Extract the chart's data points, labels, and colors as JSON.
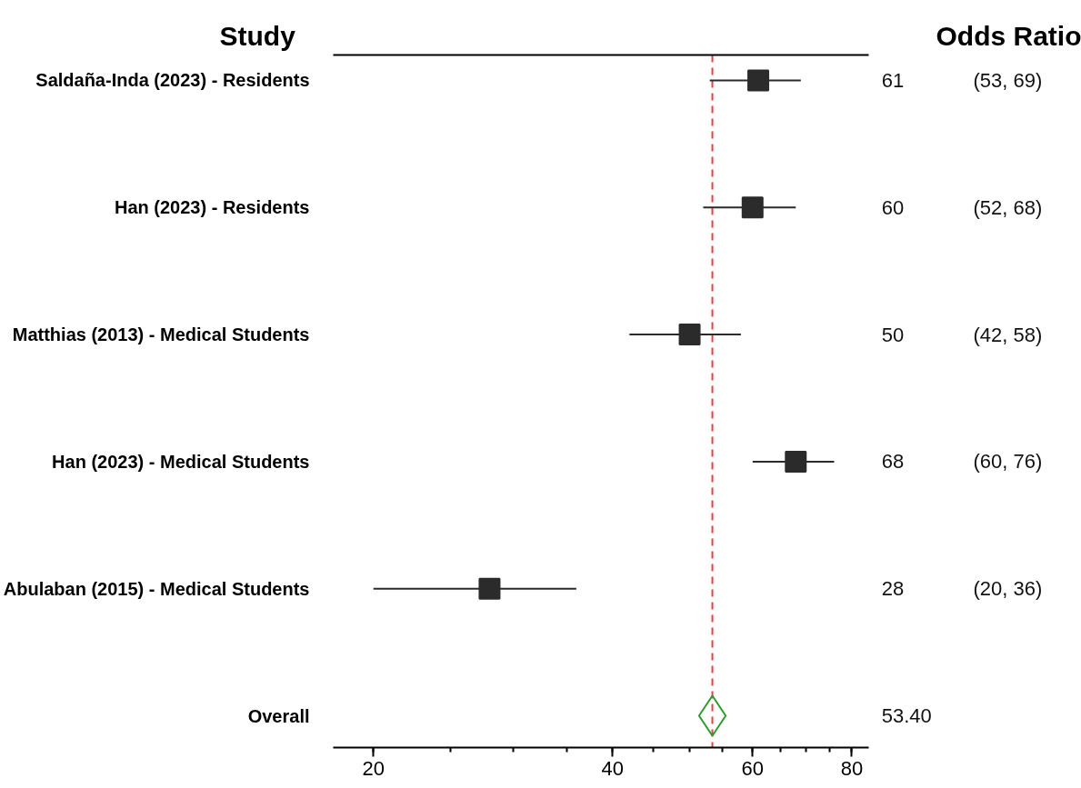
{
  "chart_data": {
    "type": "scatter",
    "orientation": "horizontal",
    "ylabel": "Study",
    "annotations": [
      "Odds Ratio",
      "(53, 69)",
      "(52, 68)",
      "(42, 58)",
      "(60, 76)",
      "(20, 36)",
      "53.40"
    ],
    "categories": [
      "Saldaña-Inda (2023) - Residents",
      "Han (2023) - Residents",
      "Matthias (2013) - Medical Students",
      "Han (2023) - Medical Students",
      "Abulaban (2015) - Medical Students",
      "Overall"
    ],
    "series": [
      {
        "color": "#2b2b2b",
        "marker": "square",
        "values": [
          61,
          60,
          50,
          68,
          28,
          null
        ],
        "errors": [
          [
            53,
            69
          ],
          [
            52,
            68
          ],
          [
            42,
            58
          ],
          [
            60,
            76
          ],
          [
            20,
            36
          ],
          null
        ],
        "value_labels": [
          "61",
          "60",
          "50",
          "68",
          "28",
          null
        ]
      },
      {
        "color": "#2e9a2e",
        "marker": "diamond",
        "values": [
          null,
          null,
          null,
          null,
          null,
          53.4
        ]
      }
    ],
    "log": "x",
    "xlim": [
      17.8,
      84
    ],
    "xticks": [
      20,
      40,
      60,
      80
    ],
    "ref_lines": [
      {
        "axis": "x",
        "value": 53.4,
        "color": "#e8403a",
        "line_style": "dashed"
      }
    ]
  }
}
